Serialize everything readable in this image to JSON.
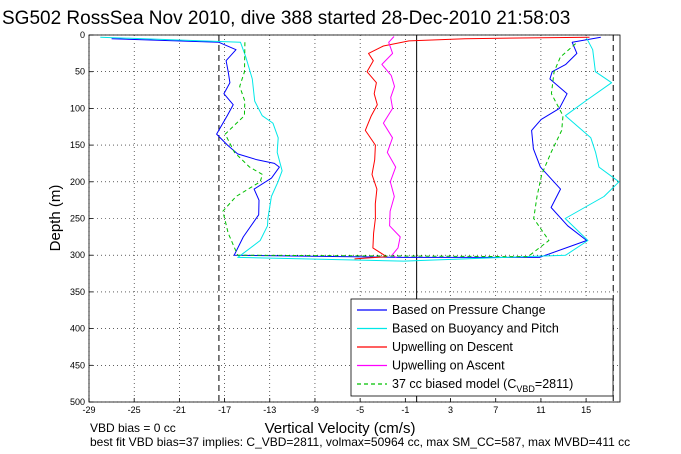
{
  "chart_data": {
    "type": "line",
    "title": "SG502 RossSea Nov 2010, dive 388 started 28-Dec-2010 21:58:03",
    "xlabel": "Vertical Velocity (cm/s)",
    "ylabel": "Depth (m)",
    "xlim": [
      -29,
      18
    ],
    "ylim": [
      500,
      0
    ],
    "y_reversed": true,
    "xticks": [
      -29,
      -25,
      -21,
      -17,
      -13,
      -9,
      -5,
      -1,
      3,
      7,
      11,
      15
    ],
    "yticks": [
      0,
      50,
      100,
      150,
      200,
      250,
      300,
      350,
      400,
      450,
      500
    ],
    "grid": "dotted",
    "reference_lines": {
      "zero": 0,
      "dashed": [
        -17.5,
        17.4
      ]
    },
    "legend_position": "bottom-right",
    "series": [
      {
        "name": "Based on Pressure Change",
        "color": "#0000ff",
        "style": "solid",
        "x": [
          -27,
          -17.8,
          -16.3,
          -16.9,
          -16.4,
          -16.2,
          -17.0,
          -16.5,
          -17.1,
          -17.8,
          -16.5,
          -15.5,
          -14.0,
          -12.8,
          -12.5,
          -13.0,
          -14.2,
          -13.6,
          -13.8,
          -15.5,
          -16.5,
          -1.5,
          11.0,
          15.4,
          13.6,
          11.8,
          12.4,
          10.7,
          10.4,
          10.5,
          11.3,
          12.6,
          13.0,
          11.5,
          12.0,
          13.5,
          14.5,
          13.8,
          16.3
        ],
        "y": [
          5,
          10,
          20,
          35,
          50,
          65,
          80,
          95,
          110,
          135,
          150,
          162,
          170,
          175,
          180,
          195,
          210,
          225,
          245,
          275,
          300,
          303,
          303,
          280,
          260,
          235,
          210,
          180,
          155,
          130,
          115,
          100,
          80,
          60,
          50,
          40,
          25,
          10,
          3
        ]
      },
      {
        "name": "Based on Buoyancy and Pitch",
        "color": "#00e8e8",
        "style": "solid",
        "x": [
          -28,
          -15.3,
          -14.8,
          -14.5,
          -14.6,
          -14.0,
          -12.8,
          -12.0,
          -12.0,
          -11.8,
          -12.5,
          -13.2,
          -13.3,
          -13.0,
          -13.5,
          -15.4,
          -16.0,
          -1.5,
          13.0,
          15.3,
          13.5,
          16.8,
          17.8,
          15.8,
          15.6,
          15.5,
          13.5,
          15.2,
          17.2,
          15.5,
          15.3,
          15.0
        ],
        "y": [
          3,
          10,
          30,
          60,
          90,
          110,
          120,
          140,
          160,
          185,
          200,
          220,
          250,
          260,
          280,
          300,
          303,
          308,
          300,
          280,
          250,
          220,
          200,
          180,
          160,
          140,
          110,
          90,
          65,
          50,
          20,
          3
        ]
      },
      {
        "name": "Upwelling on Descent",
        "color": "#ff0000",
        "style": "solid",
        "x": [
          15.3,
          4.0,
          -1.0,
          -3.0,
          -4.0,
          -3.5,
          -4.3,
          -3.8,
          -4.1,
          -3.6,
          -3.8,
          -4.2,
          -3.5,
          -3.9,
          -4.3,
          -3.7,
          -3.5,
          -3.3,
          -3.6,
          -4.0,
          -3.0,
          -5.5
        ],
        "y": [
          3,
          5,
          8,
          15,
          25,
          35,
          50,
          65,
          80,
          95,
          110,
          130,
          150,
          170,
          190,
          210,
          230,
          250,
          270,
          290,
          302,
          305
        ]
      },
      {
        "name": "Upwelling on Ascent",
        "color": "#ff00ff",
        "style": "solid",
        "x": [
          -2.0,
          -2.2,
          -1.8,
          -3.0,
          -2.5,
          -2.3,
          -2.4,
          -1.9,
          -2.6,
          -2.0,
          -2.8,
          -2.2,
          -2.5,
          -1.8,
          -2.0,
          -2.2,
          -1.6,
          -2.0,
          -2.4,
          -1.8
        ],
        "y": [
          2,
          10,
          25,
          40,
          55,
          70,
          85,
          100,
          120,
          140,
          160,
          180,
          200,
          220,
          240,
          260,
          275,
          290,
          300,
          303
        ]
      },
      {
        "name": "37 cc biased model (C_VBD=2811)",
        "color": "#00c000",
        "style": "dashed",
        "x": [
          -15.2,
          -15.5,
          -16.0,
          -15.3,
          -15.0,
          -16.6,
          -16.0,
          -15.0,
          -14.0,
          -14.0,
          -15.8,
          -16.8,
          -16.5,
          -16.0,
          9.5,
          11.5,
          10.5,
          11.0,
          11.3,
          11.8,
          12.5,
          12.7,
          12.0,
          12.5,
          13.0,
          14.2
        ],
        "y": [
          10,
          50,
          70,
          90,
          110,
          135,
          160,
          180,
          190,
          200,
          220,
          240,
          270,
          300,
          302,
          280,
          250,
          220,
          190,
          160,
          130,
          110,
          80,
          50,
          30,
          10
        ]
      }
    ],
    "legend": {
      "entries": [
        {
          "text": "Based on Pressure Change",
          "sub": ""
        },
        {
          "text": "Based on Buoyancy and Pitch",
          "sub": ""
        },
        {
          "text": "Upwelling on Descent",
          "sub": ""
        },
        {
          "text": "Upwelling on Ascent",
          "sub": ""
        },
        {
          "text": "37 cc biased model (C",
          "sub": "VBD",
          "after": "=2811)"
        }
      ]
    }
  },
  "notes": {
    "line1": "VBD bias = 0 cc",
    "line2": "best fit VBD bias=37 implies: C_VBD=2811, volmax=50964 cc, max SM_CC=587, max MVBD=411 cc"
  }
}
